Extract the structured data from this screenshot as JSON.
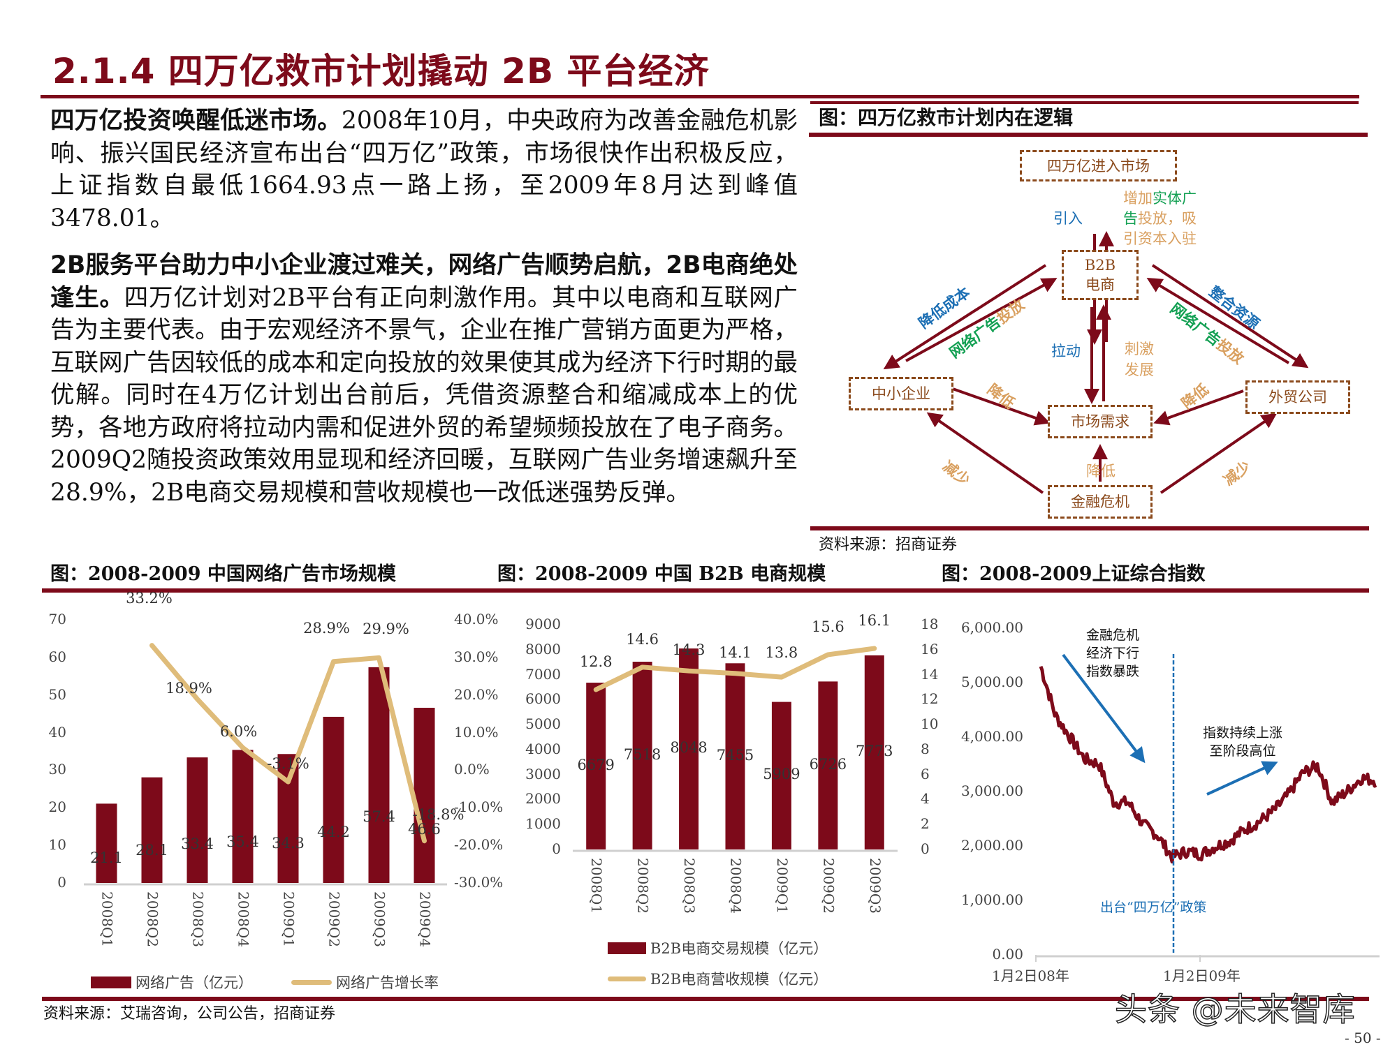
{
  "page": {
    "title": "2.1.4 四万亿救市计划撬动 2B 平台经济",
    "page_number": "- 50 -",
    "watermark": "头条 @未来智库",
    "brand_color": "#7d0a1a"
  },
  "text": {
    "p1_bold": "四万亿投资唤醒低迷市场。",
    "p1_body": "2008年10月，中央政府为改善金融危机影响、振兴国民经济宣布出台“四万亿”政策，市场很快作出积极反应，上证指数自最低1664.93点一路上扬，至2009年8月达到峰值3478.01。",
    "p2_bold": "2B服务平台助力中小企业渡过难关，网络广告顺势启航，2B电商绝处逢生。",
    "p2_body": "四万亿计划对2B平台有正向刺激作用。其中以电商和互联网广告为主要代表。由于宏观经济不景气，企业在推广营销方面更为严格，互联网广告因较低的成本和定向投放的效果使其成为经济下行时期的最优解。同时在4万亿计划出台前后，凭借资源整合和缩减成本上的优势，各地方政府将拉动内需和促进外贸的希望频频投放在了电子商务。2009Q2随投资政策效用显现和经济回暖，互联网广告业务增速飙升至28.9%，2B电商交易规模和营收规模也一改低迷强势反弹。"
  },
  "diagram": {
    "title": "图：四万亿救市计划内在逻辑",
    "source": "资料来源：招商证券",
    "nodes": {
      "top": "四万亿进入市场",
      "b2b_1": "B2B",
      "b2b_2": "电商",
      "sme": "中小企业",
      "trade": "外贸公司",
      "demand": "市场需求",
      "crisis": "金融危机"
    },
    "labels": {
      "introduce": "引入",
      "increase_1a": "增加",
      "increase_1b": "实体广",
      "increase_2a": "告",
      "increase_2b": "投放，吸",
      "increase_3": "引资本入驻",
      "reduce_cost": "降低成本",
      "ad_1": "网络",
      "ad_2": "广告",
      "ad_3": "投放",
      "integrate": "整合资源",
      "ad_r1": "网络",
      "ad_r2": "广告",
      "ad_r3": "投放",
      "pull": "拉动",
      "stimulate_1": "刺激",
      "stimulate_2": "发展",
      "lower_left": "降低",
      "lower_right": "降低",
      "lower_mid": "降低",
      "reduce_left": "减少",
      "reduce_right": "减少"
    }
  },
  "charts_header": {
    "c1_title": "图：2008-2009 中国网络广告市场规模",
    "c2_title": "图：2008-2009 中国 B2B 电商规模",
    "c3_title": "图：2008-2009上证综合指数",
    "source": "资料来源：艾瑞咨询，公司公告，招商证券"
  },
  "chart_data": [
    {
      "type": "bar",
      "title": "2008-2009 中国网络广告市场规模",
      "categories": [
        "2008Q1",
        "2008Q2",
        "2008Q3",
        "2008Q4",
        "2009Q1",
        "2009Q2",
        "2009Q3",
        "2009Q4"
      ],
      "series": [
        {
          "name": "网络广告（亿元）",
          "type": "bar",
          "axis": "left",
          "color": "#7d0a1a",
          "values": [
            21.1,
            28.1,
            33.4,
            35.4,
            34.3,
            44.2,
            57.4,
            46.6
          ],
          "labels": [
            "21.1",
            "28.1",
            "33.4",
            "35.4",
            "34.3",
            "44.2",
            "57.4",
            "46.6"
          ]
        },
        {
          "name": "网络广告增长率",
          "type": "line",
          "axis": "right",
          "color": "#dfbc7a",
          "values": [
            null,
            33.2,
            18.9,
            6.0,
            -3.1,
            28.9,
            29.9,
            -18.8
          ],
          "labels": [
            "",
            "33.2%",
            "18.9%",
            "6.0%",
            "-3.1%",
            "28.9%",
            "29.9%",
            "-18.8%"
          ]
        }
      ],
      "y_left": {
        "ticks": [
          "70",
          "60",
          "50",
          "40",
          "30",
          "20",
          "10",
          "0"
        ],
        "range": [
          0,
          70
        ]
      },
      "y_right": {
        "ticks": [
          "40.0%",
          "30.0%",
          "20.0%",
          "10.0%",
          "0.0%",
          "-10.0%",
          "-20.0%",
          "-30.0%"
        ],
        "range": [
          -30,
          40
        ]
      },
      "legend": [
        "网络广告（亿元）",
        "网络广告增长率"
      ],
      "legend_position": "bottom",
      "grid": false
    },
    {
      "type": "bar",
      "title": "2008-2009 中国 B2B 电商规模",
      "categories": [
        "2008Q1",
        "2008Q2",
        "2008Q3",
        "2008Q4",
        "2009Q1",
        "2009Q2",
        "2009Q3"
      ],
      "series": [
        {
          "name": "B2B电商交易规模（亿元）",
          "type": "bar",
          "axis": "left",
          "color": "#7d0a1a",
          "values": [
            6679,
            7518,
            8048,
            7455,
            5909,
            6726,
            7773
          ],
          "labels": [
            "6679",
            "7518",
            "8048",
            "7455",
            "5909",
            "6726",
            "7773"
          ]
        },
        {
          "name": "B2B电商营收规模（亿元）",
          "type": "line",
          "axis": "right",
          "color": "#dfbc7a",
          "values": [
            12.8,
            14.6,
            14.3,
            14.1,
            13.8,
            15.6,
            16.1
          ],
          "labels": [
            "12.8",
            "14.6",
            "14.3",
            "14.1",
            "13.8",
            "15.6",
            "16.1"
          ]
        }
      ],
      "y_left": {
        "ticks": [
          "9000",
          "8000",
          "7000",
          "6000",
          "5000",
          "4000",
          "3000",
          "2000",
          "1000",
          "0"
        ],
        "range": [
          0,
          9000
        ]
      },
      "y_right": {
        "ticks": [
          "18",
          "16",
          "14",
          "12",
          "10",
          "8",
          "6",
          "4",
          "2",
          "0"
        ],
        "range": [
          0,
          18
        ]
      },
      "legend": [
        "B2B电商交易规模（亿元）",
        "B2B电商营收规模（亿元）"
      ],
      "legend_position": "bottom",
      "grid": false
    },
    {
      "type": "line",
      "title": "2008-2009上证综合指数",
      "x_ticks": [
        "1月2日08年",
        "1月2日09年"
      ],
      "y_ticks": [
        "6,000.00",
        "5,000.00",
        "4,000.00",
        "3,000.00",
        "2,000.00",
        "1,000.00",
        "0.00"
      ],
      "ylim": [
        0,
        6000
      ],
      "series": [
        {
          "name": "上证综合指数",
          "color": "#7d0a1a",
          "x": [
            "2008-01",
            "2008-02",
            "2008-03",
            "2008-04",
            "2008-05",
            "2008-06",
            "2008-07",
            "2008-08",
            "2008-09",
            "2008-10",
            "2008-11",
            "2008-12",
            "2009-01",
            "2009-02",
            "2009-03",
            "2009-04",
            "2009-05",
            "2009-06",
            "2009-07",
            "2009-08",
            "2009-09",
            "2009-10",
            "2009-11",
            "2009-12"
          ],
          "values": [
            5300,
            4400,
            4000,
            3600,
            3500,
            2800,
            2800,
            2400,
            2200,
            1800,
            1900,
            1850,
            1990,
            2100,
            2300,
            2450,
            2650,
            2950,
            3350,
            3470,
            2800,
            3000,
            3250,
            3200
          ]
        }
      ],
      "annotations": [
        {
          "text": "金融危机 经济下行 指数暴跌",
          "type": "arrow-down",
          "color": "#1c6fb4"
        },
        {
          "text": "指数持续上涨 至阶段高位",
          "type": "arrow-up",
          "color": "#1c6fb4"
        },
        {
          "text": "出台“四万亿”政策",
          "type": "vline",
          "color": "#1c6fb4"
        }
      ],
      "grid": false
    }
  ],
  "chart3_notes": {
    "down_1": "金融危机",
    "down_2": "经济下行",
    "down_3": "指数暴跌",
    "up_1": "指数持续上涨",
    "up_2": "至阶段高位",
    "policy": "出台“四万亿”政策"
  }
}
